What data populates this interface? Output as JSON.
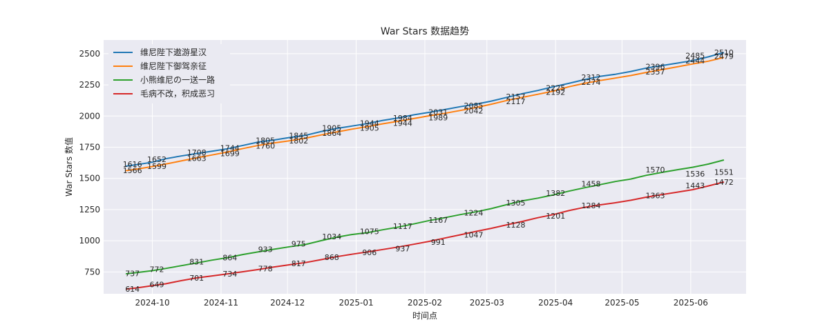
{
  "chart_data": {
    "type": "line",
    "title": "War Stars 数据趋势",
    "xlabel": "时间点",
    "ylabel": "War Stars 数值",
    "x_axis": {
      "type": "date",
      "range": [
        "2024-09-09",
        "2025-06-26"
      ],
      "ticks": [
        "2024-10-01",
        "2024-11-01",
        "2024-12-01",
        "2025-01-01",
        "2025-02-01",
        "2025-03-01",
        "2025-04-01",
        "2025-05-01",
        "2025-06-01"
      ],
      "tick_labels": [
        "2024-10",
        "2024-11",
        "2024-12",
        "2025-01",
        "2025-02",
        "2025-03",
        "2025-04",
        "2025-05",
        "2025-06"
      ]
    },
    "y_axis": {
      "range": [
        575,
        2610
      ],
      "ticks": [
        750,
        1000,
        1250,
        1500,
        1750,
        2000,
        2250,
        2500
      ],
      "tick_labels": [
        "750",
        "1000",
        "1250",
        "1500",
        "1750",
        "2000",
        "2250",
        "2500"
      ]
    },
    "grid": true,
    "legend_position": "top-left",
    "series": [
      {
        "name": "维尼陛下遨游星汉",
        "color": "#1f77b4",
        "points": [
          [
            "2024-09-19",
            1598
          ],
          [
            "2024-09-24",
            1610
          ],
          [
            "2024-10-01",
            1630
          ],
          [
            "2024-10-07",
            1658
          ],
          [
            "2024-10-14",
            1680
          ],
          [
            "2024-10-21",
            1700
          ],
          [
            "2024-10-28",
            1718
          ],
          [
            "2024-11-04",
            1738
          ],
          [
            "2024-11-11",
            1765
          ],
          [
            "2024-11-18",
            1792
          ],
          [
            "2024-11-25",
            1808
          ],
          [
            "2024-12-02",
            1828
          ],
          [
            "2024-12-09",
            1845
          ],
          [
            "2024-12-16",
            1875
          ],
          [
            "2024-12-23",
            1900
          ],
          [
            "2024-12-30",
            1920
          ],
          [
            "2025-01-06",
            1940
          ],
          [
            "2025-01-13",
            1965
          ],
          [
            "2025-01-20",
            1985
          ],
          [
            "2025-01-27",
            2010
          ],
          [
            "2025-02-03",
            2030
          ],
          [
            "2025-02-10",
            2052
          ],
          [
            "2025-02-17",
            2075
          ],
          [
            "2025-02-24",
            2095
          ],
          [
            "2025-03-03",
            2120
          ],
          [
            "2025-03-10",
            2150
          ],
          [
            "2025-03-17",
            2180
          ],
          [
            "2025-03-24",
            2205
          ],
          [
            "2025-03-31",
            2235
          ],
          [
            "2025-04-07",
            2262
          ],
          [
            "2025-04-14",
            2292
          ],
          [
            "2025-04-21",
            2318
          ],
          [
            "2025-04-28",
            2335
          ],
          [
            "2025-05-05",
            2358
          ],
          [
            "2025-05-12",
            2385
          ],
          [
            "2025-05-19",
            2405
          ],
          [
            "2025-05-26",
            2425
          ],
          [
            "2025-06-02",
            2445
          ],
          [
            "2025-06-09",
            2475
          ],
          [
            "2025-06-16",
            2510
          ]
        ],
        "labels": [
          [
            "2024-09-22",
            1566
          ],
          [
            "2024-10-03",
            1599
          ],
          [
            "2024-10-21",
            1663
          ],
          [
            "2024-11-05",
            1699
          ],
          [
            "2024-11-21",
            1760
          ],
          [
            "2024-12-06",
            1802
          ],
          [
            "2024-12-21",
            1864
          ],
          [
            "2025-01-07",
            1905
          ],
          [
            "2025-01-22",
            1944
          ],
          [
            "2025-02-07",
            1989
          ],
          [
            "2025-02-23",
            2042
          ],
          [
            "2025-03-14",
            2117
          ],
          [
            "2025-04-01",
            2192
          ],
          [
            "2025-04-17",
            2274
          ],
          [
            "2025-05-16",
            2357
          ],
          [
            "2025-06-03",
            2444
          ],
          [
            "2025-06-16",
            2479
          ]
        ]
      },
      {
        "name": "维尼陛下御驾亲征",
        "color": "#ff7f0e",
        "points": [
          [
            "2024-09-19",
            1562
          ],
          [
            "2024-09-24",
            1575
          ],
          [
            "2024-10-01",
            1595
          ],
          [
            "2024-10-07",
            1615
          ],
          [
            "2024-10-14",
            1640
          ],
          [
            "2024-10-21",
            1665
          ],
          [
            "2024-10-28",
            1688
          ],
          [
            "2024-11-04",
            1712
          ],
          [
            "2024-11-11",
            1740
          ],
          [
            "2024-11-18",
            1765
          ],
          [
            "2024-11-25",
            1785
          ],
          [
            "2024-12-02",
            1802
          ],
          [
            "2024-12-09",
            1822
          ],
          [
            "2024-12-16",
            1848
          ],
          [
            "2024-12-23",
            1872
          ],
          [
            "2024-12-30",
            1895
          ],
          [
            "2025-01-06",
            1915
          ],
          [
            "2025-01-13",
            1938
          ],
          [
            "2025-01-20",
            1958
          ],
          [
            "2025-01-27",
            1980
          ],
          [
            "2025-02-03",
            2002
          ],
          [
            "2025-02-10",
            2022
          ],
          [
            "2025-02-17",
            2045
          ],
          [
            "2025-02-24",
            2068
          ],
          [
            "2025-03-03",
            2095
          ],
          [
            "2025-03-10",
            2125
          ],
          [
            "2025-03-17",
            2150
          ],
          [
            "2025-03-24",
            2175
          ],
          [
            "2025-03-31",
            2200
          ],
          [
            "2025-04-07",
            2235
          ],
          [
            "2025-04-14",
            2262
          ],
          [
            "2025-04-21",
            2285
          ],
          [
            "2025-04-28",
            2305
          ],
          [
            "2025-05-05",
            2325
          ],
          [
            "2025-05-12",
            2350
          ],
          [
            "2025-05-19",
            2372
          ],
          [
            "2025-05-26",
            2395
          ],
          [
            "2025-06-02",
            2418
          ],
          [
            "2025-06-09",
            2440
          ],
          [
            "2025-06-16",
            2470
          ]
        ],
        "labels": [
          [
            "2024-09-22",
            1616
          ],
          [
            "2024-10-03",
            1652
          ],
          [
            "2024-10-21",
            1708
          ],
          [
            "2024-11-05",
            1744
          ],
          [
            "2024-11-21",
            1805
          ],
          [
            "2024-12-06",
            1845
          ],
          [
            "2024-12-21",
            1905
          ],
          [
            "2025-01-07",
            1944
          ],
          [
            "2025-01-22",
            1984
          ],
          [
            "2025-02-07",
            2031
          ],
          [
            "2025-02-23",
            2085
          ],
          [
            "2025-03-14",
            2157
          ],
          [
            "2025-04-01",
            2225
          ],
          [
            "2025-04-17",
            2312
          ],
          [
            "2025-05-16",
            2396
          ],
          [
            "2025-06-03",
            2485
          ],
          [
            "2025-06-16",
            2510
          ]
        ]
      },
      {
        "name": "小熊维尼の一送一路",
        "color": "#2ca02c",
        "points": [
          [
            "2024-09-19",
            735
          ],
          [
            "2024-09-24",
            745
          ],
          [
            "2024-10-01",
            760
          ],
          [
            "2024-10-07",
            778
          ],
          [
            "2024-10-14",
            800
          ],
          [
            "2024-10-21",
            822
          ],
          [
            "2024-10-28",
            845
          ],
          [
            "2024-11-04",
            865
          ],
          [
            "2024-11-11",
            890
          ],
          [
            "2024-11-18",
            912
          ],
          [
            "2024-11-25",
            932
          ],
          [
            "2024-12-02",
            952
          ],
          [
            "2024-12-09",
            970
          ],
          [
            "2024-12-16",
            1000
          ],
          [
            "2024-12-23",
            1028
          ],
          [
            "2024-12-30",
            1050
          ],
          [
            "2025-01-06",
            1065
          ],
          [
            "2025-01-13",
            1088
          ],
          [
            "2025-01-20",
            1110
          ],
          [
            "2025-01-27",
            1135
          ],
          [
            "2025-02-03",
            1162
          ],
          [
            "2025-02-10",
            1185
          ],
          [
            "2025-02-17",
            1210
          ],
          [
            "2025-02-24",
            1232
          ],
          [
            "2025-03-03",
            1258
          ],
          [
            "2025-03-10",
            1290
          ],
          [
            "2025-03-17",
            1320
          ],
          [
            "2025-03-24",
            1342
          ],
          [
            "2025-03-31",
            1368
          ],
          [
            "2025-04-07",
            1398
          ],
          [
            "2025-04-14",
            1425
          ],
          [
            "2025-04-21",
            1450
          ],
          [
            "2025-04-28",
            1475
          ],
          [
            "2025-05-05",
            1495
          ],
          [
            "2025-05-12",
            1525
          ],
          [
            "2025-05-19",
            1548
          ],
          [
            "2025-05-26",
            1570
          ],
          [
            "2025-06-02",
            1590
          ],
          [
            "2025-06-09",
            1615
          ],
          [
            "2025-06-16",
            1648
          ]
        ],
        "labels": [
          [
            "2024-09-22",
            614
          ],
          [
            "2024-10-03",
            649
          ],
          [
            "2024-10-21",
            701
          ],
          [
            "2024-11-05",
            734
          ],
          [
            "2024-11-21",
            778
          ],
          [
            "2024-12-06",
            817
          ],
          [
            "2024-12-21",
            868
          ],
          [
            "2025-01-07",
            906
          ],
          [
            "2025-01-22",
            937
          ],
          [
            "2025-02-07",
            991
          ],
          [
            "2025-02-23",
            1047
          ],
          [
            "2025-03-14",
            1128
          ],
          [
            "2025-04-01",
            1201
          ],
          [
            "2025-04-17",
            1284
          ],
          [
            "2025-05-16",
            1363
          ],
          [
            "2025-06-03",
            1443
          ],
          [
            "2025-06-16",
            1472
          ]
        ]
      },
      {
        "name": "毛病不改，积成恶习",
        "color": "#d62728",
        "points": [
          [
            "2024-09-19",
            612
          ],
          [
            "2024-09-24",
            622
          ],
          [
            "2024-10-01",
            640
          ],
          [
            "2024-10-07",
            655
          ],
          [
            "2024-10-14",
            680
          ],
          [
            "2024-10-21",
            702
          ],
          [
            "2024-10-28",
            718
          ],
          [
            "2024-11-04",
            735
          ],
          [
            "2024-11-11",
            752
          ],
          [
            "2024-11-18",
            770
          ],
          [
            "2024-11-25",
            790
          ],
          [
            "2024-12-02",
            808
          ],
          [
            "2024-12-09",
            825
          ],
          [
            "2024-12-16",
            848
          ],
          [
            "2024-12-23",
            872
          ],
          [
            "2024-12-30",
            892
          ],
          [
            "2025-01-06",
            910
          ],
          [
            "2025-01-13",
            930
          ],
          [
            "2025-01-20",
            950
          ],
          [
            "2025-01-27",
            972
          ],
          [
            "2025-02-03",
            995
          ],
          [
            "2025-02-10",
            1022
          ],
          [
            "2025-02-17",
            1048
          ],
          [
            "2025-02-24",
            1075
          ],
          [
            "2025-03-03",
            1100
          ],
          [
            "2025-03-10",
            1128
          ],
          [
            "2025-03-17",
            1155
          ],
          [
            "2025-03-24",
            1185
          ],
          [
            "2025-03-31",
            1210
          ],
          [
            "2025-04-07",
            1242
          ],
          [
            "2025-04-14",
            1268
          ],
          [
            "2025-04-21",
            1288
          ],
          [
            "2025-04-28",
            1305
          ],
          [
            "2025-05-05",
            1325
          ],
          [
            "2025-05-12",
            1350
          ],
          [
            "2025-05-19",
            1370
          ],
          [
            "2025-05-26",
            1390
          ],
          [
            "2025-06-02",
            1410
          ],
          [
            "2025-06-09",
            1440
          ],
          [
            "2025-06-16",
            1472
          ]
        ],
        "labels": [
          [
            "2024-09-22",
            737
          ],
          [
            "2024-10-03",
            772
          ],
          [
            "2024-10-21",
            831
          ],
          [
            "2024-11-05",
            864
          ],
          [
            "2024-11-21",
            933
          ],
          [
            "2024-12-06",
            975
          ],
          [
            "2024-12-21",
            1034
          ],
          [
            "2025-01-07",
            1075
          ],
          [
            "2025-01-22",
            1117
          ],
          [
            "2025-02-07",
            1167
          ],
          [
            "2025-02-23",
            1224
          ],
          [
            "2025-03-14",
            1305
          ],
          [
            "2025-04-01",
            1382
          ],
          [
            "2025-04-17",
            1458
          ],
          [
            "2025-05-16",
            1570
          ],
          [
            "2025-06-03",
            1536
          ],
          [
            "2025-06-16",
            1551
          ]
        ]
      }
    ]
  }
}
